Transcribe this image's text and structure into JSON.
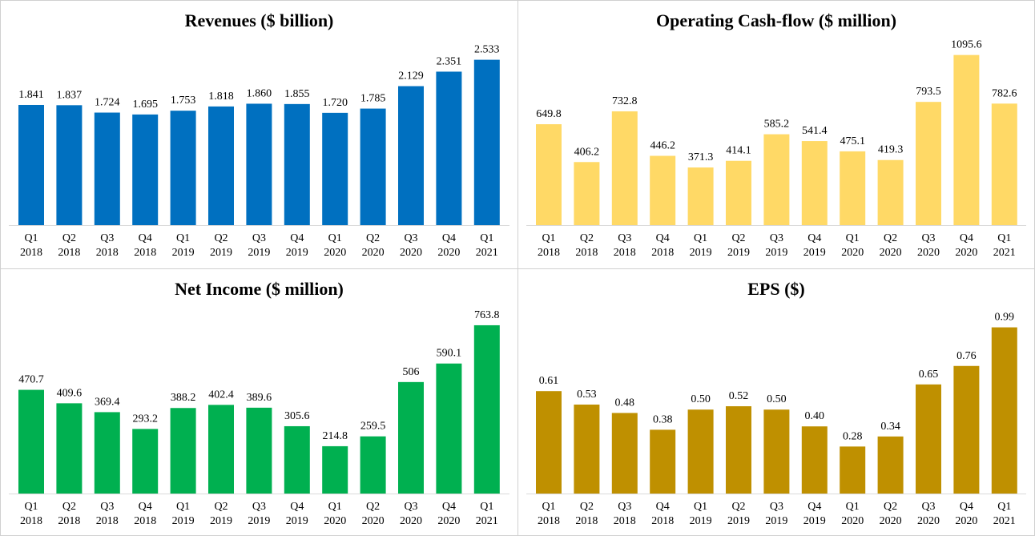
{
  "chart_data": [
    {
      "type": "bar",
      "title": "Revenues ($ billion)",
      "categories": [
        [
          "Q1",
          "2018"
        ],
        [
          "Q2",
          "2018"
        ],
        [
          "Q3",
          "2018"
        ],
        [
          "Q4",
          "2018"
        ],
        [
          "Q1",
          "2019"
        ],
        [
          "Q2",
          "2019"
        ],
        [
          "Q3",
          "2019"
        ],
        [
          "Q4",
          "2019"
        ],
        [
          "Q1",
          "2020"
        ],
        [
          "Q2",
          "2020"
        ],
        [
          "Q3",
          "2020"
        ],
        [
          "Q4",
          "2020"
        ],
        [
          "Q1",
          "2021"
        ]
      ],
      "values": [
        1.841,
        1.837,
        1.724,
        1.695,
        1.753,
        1.818,
        1.86,
        1.855,
        1.72,
        1.785,
        2.129,
        2.351,
        2.533
      ],
      "labels": [
        "1.841",
        "1.837",
        "1.724",
        "1.695",
        "1.753",
        "1.818",
        "1.860",
        "1.855",
        "1.720",
        "1.785",
        "2.129",
        "2.351",
        "2.533"
      ],
      "ylim": [
        0,
        2.7
      ],
      "grid": false,
      "color": "#0070C0"
    },
    {
      "type": "bar",
      "title": "Operating Cash-flow ($ million)",
      "categories": [
        [
          "Q1",
          "2018"
        ],
        [
          "Q2",
          "2018"
        ],
        [
          "Q3",
          "2018"
        ],
        [
          "Q4",
          "2018"
        ],
        [
          "Q1",
          "2019"
        ],
        [
          "Q2",
          "2019"
        ],
        [
          "Q3",
          "2019"
        ],
        [
          "Q4",
          "2019"
        ],
        [
          "Q1",
          "2020"
        ],
        [
          "Q2",
          "2020"
        ],
        [
          "Q3",
          "2020"
        ],
        [
          "Q4",
          "2020"
        ],
        [
          "Q1",
          "2021"
        ]
      ],
      "values": [
        649.8,
        406.2,
        732.8,
        446.2,
        371.3,
        414.1,
        585.2,
        541.4,
        475.1,
        419.3,
        793.5,
        1095.6,
        782.6
      ],
      "labels": [
        "649.8",
        "406.2",
        "732.8",
        "446.2",
        "371.3",
        "414.1",
        "585.2",
        "541.4",
        "475.1",
        "419.3",
        "793.5",
        "1095.6",
        "782.6"
      ],
      "ylim": [
        0,
        1135
      ],
      "grid": false,
      "color": "#FFD966"
    },
    {
      "type": "bar",
      "title": "Net Income ($ million)",
      "categories": [
        [
          "Q1",
          "2018"
        ],
        [
          "Q2",
          "2018"
        ],
        [
          "Q3",
          "2018"
        ],
        [
          "Q4",
          "2018"
        ],
        [
          "Q1",
          "2019"
        ],
        [
          "Q2",
          "2019"
        ],
        [
          "Q3",
          "2019"
        ],
        [
          "Q4",
          "2019"
        ],
        [
          "Q1",
          "2020"
        ],
        [
          "Q2",
          "2020"
        ],
        [
          "Q3",
          "2020"
        ],
        [
          "Q4",
          "2020"
        ],
        [
          "Q1",
          "2021"
        ]
      ],
      "values": [
        470.7,
        409.6,
        369.4,
        293.2,
        388.2,
        402.4,
        389.6,
        305.6,
        214.8,
        259.5,
        506,
        590.1,
        763.8
      ],
      "labels": [
        "470.7",
        "409.6",
        "369.4",
        "293.2",
        "388.2",
        "402.4",
        "389.6",
        "305.6",
        "214.8",
        "259.5",
        "506",
        "590.1",
        "763.8"
      ],
      "ylim": [
        0,
        800
      ],
      "grid": false,
      "color": "#00B050"
    },
    {
      "type": "bar",
      "title": "EPS ($)",
      "categories": [
        [
          "Q1",
          "2018"
        ],
        [
          "Q2",
          "2018"
        ],
        [
          "Q3",
          "2018"
        ],
        [
          "Q4",
          "2018"
        ],
        [
          "Q1",
          "2019"
        ],
        [
          "Q2",
          "2019"
        ],
        [
          "Q3",
          "2019"
        ],
        [
          "Q4",
          "2019"
        ],
        [
          "Q1",
          "2020"
        ],
        [
          "Q2",
          "2020"
        ],
        [
          "Q3",
          "2020"
        ],
        [
          "Q4",
          "2020"
        ],
        [
          "Q1",
          "2021"
        ]
      ],
      "values": [
        0.61,
        0.53,
        0.48,
        0.38,
        0.5,
        0.52,
        0.5,
        0.4,
        0.28,
        0.34,
        0.65,
        0.76,
        0.99
      ],
      "labels": [
        "0.61",
        "0.53",
        "0.48",
        "0.38",
        "0.50",
        "0.52",
        "0.50",
        "0.40",
        "0.28",
        "0.34",
        "0.65",
        "0.76",
        "0.99"
      ],
      "ylim": [
        0,
        1.05
      ],
      "grid": false,
      "color": "#BF9000"
    }
  ]
}
